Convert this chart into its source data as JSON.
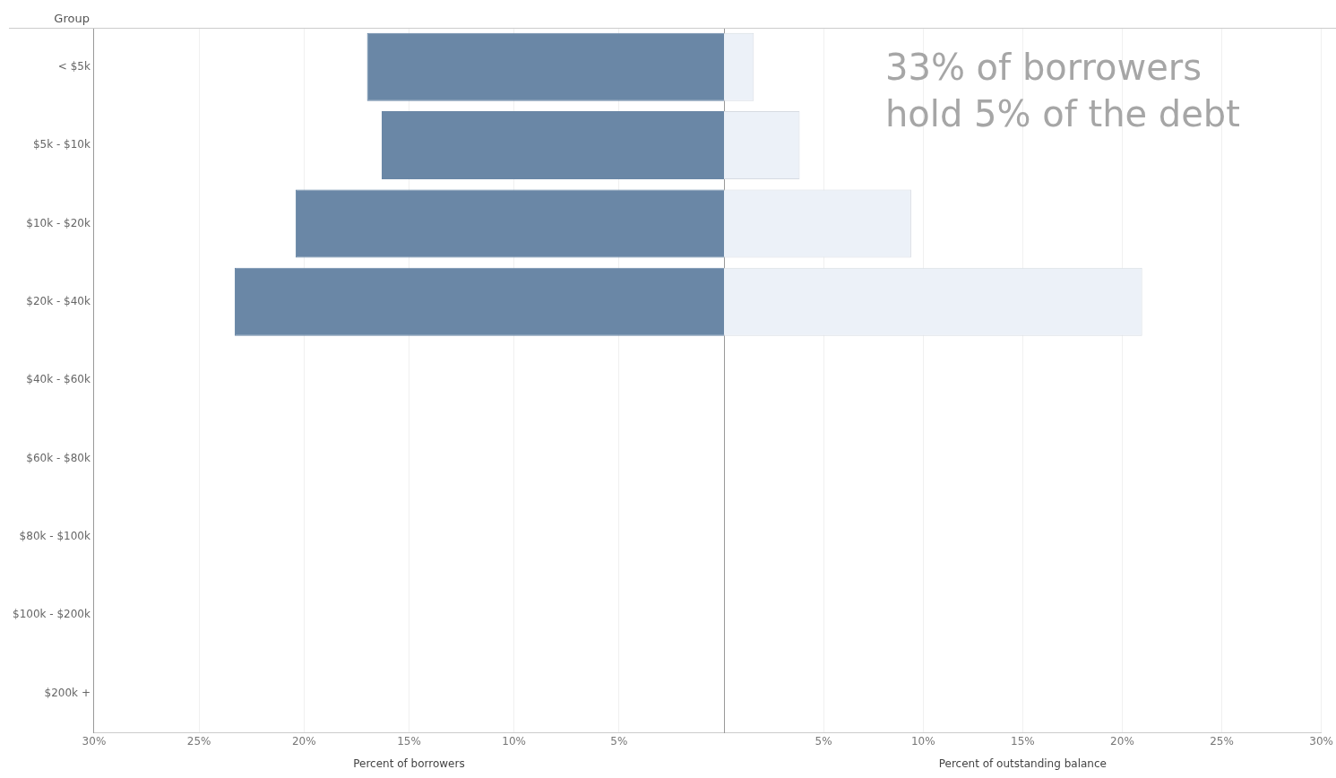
{
  "chart_data": [
    {
      "type": "bar",
      "orientation": "horizontal",
      "ylabel": "Group",
      "xlabel": "Percent of borrowers",
      "categories": [
        "< $5k",
        "$5k - $10k",
        "$10k - $20k",
        "$20k - $40k",
        "$40k - $60k",
        "$60k - $80k",
        "$80k - $100k",
        "$100k - $200k",
        "$200k +"
      ],
      "values": [
        17.0,
        16.3,
        20.4,
        23.3,
        null,
        null,
        null,
        null,
        null
      ],
      "color": "#6a87a6",
      "xlim": [
        30,
        0
      ],
      "xticks": [
        {
          "value": 30,
          "label": "30%"
        },
        {
          "value": 25,
          "label": "25%"
        },
        {
          "value": 20,
          "label": "20%"
        },
        {
          "value": 15,
          "label": "15%"
        },
        {
          "value": 10,
          "label": "10%"
        },
        {
          "value": 5,
          "label": "5%"
        }
      ],
      "grid": "x"
    },
    {
      "type": "bar",
      "orientation": "horizontal",
      "xlabel": "Percent of outstanding balance",
      "tick_labels": "x",
      "categories": [
        null,
        null,
        null,
        null,
        null,
        null,
        null,
        null,
        null
      ],
      "values": [
        1.5,
        3.8,
        9.4,
        21.0,
        null,
        null,
        null,
        null,
        null
      ],
      "color": "#ecf1f8",
      "xlim": [
        0,
        30
      ],
      "xticks": [
        {
          "value": 5,
          "label": "5%"
        },
        {
          "value": 10,
          "label": "10%"
        },
        {
          "value": 15,
          "label": "15%"
        },
        {
          "value": 20,
          "label": "20%"
        },
        {
          "value": 25,
          "label": "25%"
        },
        {
          "value": 30,
          "label": "30%"
        }
      ],
      "grid": "x",
      "annotations": [
        "33% of borrowers\nhold 5% of the debt"
      ]
    }
  ]
}
